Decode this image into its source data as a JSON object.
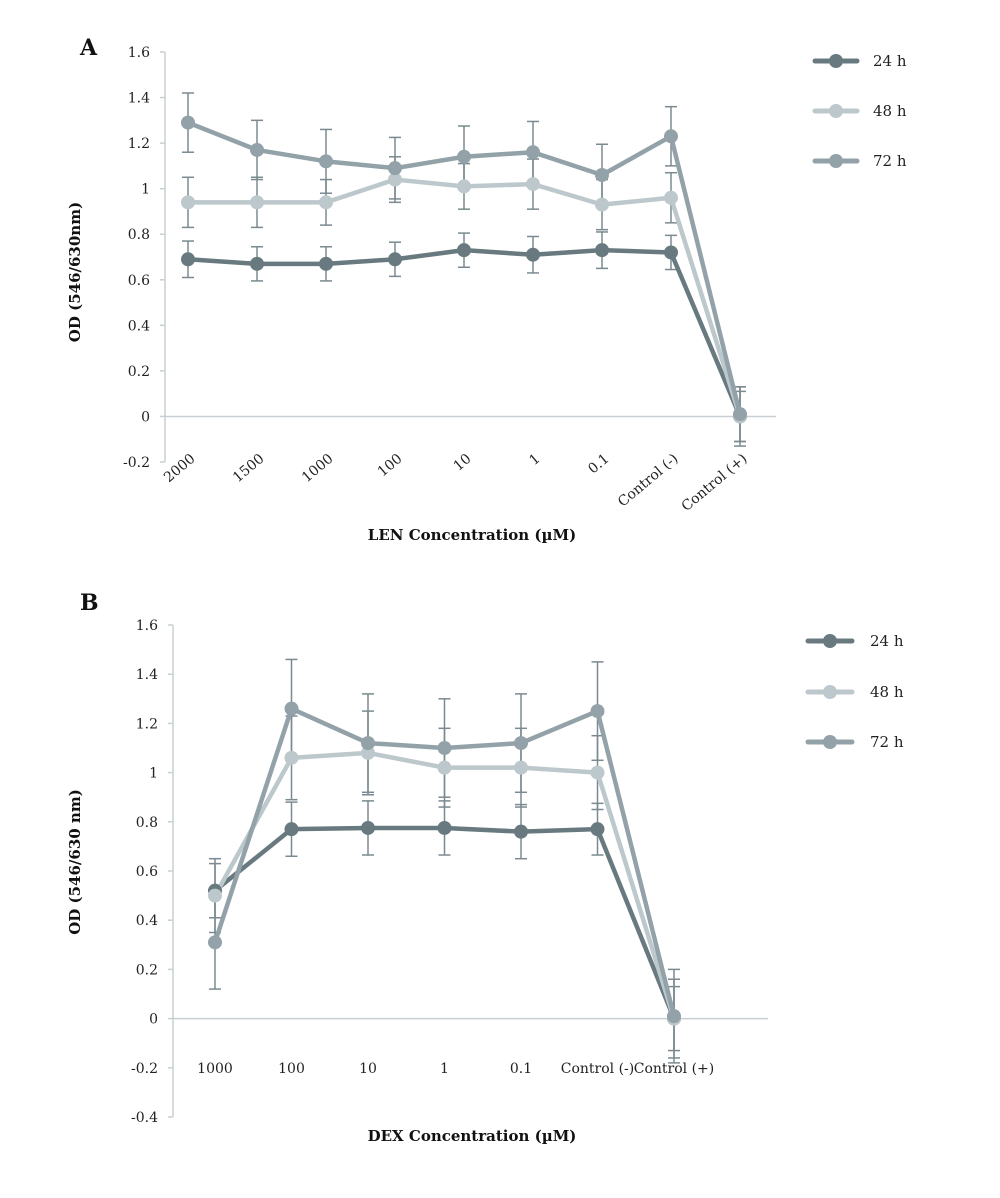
{
  "colors": {
    "24 h": "#687a80",
    "48 h": "#bcc8cc",
    "72 h": "#92a2a8",
    "axis": "#c8cfd2",
    "errorbar": "#7a8a90"
  },
  "chart_data": [
    {
      "type": "line",
      "panel_label": "A",
      "xlabel": "LEN Concentration (µM)",
      "ylabel": "OD (546/630nm)",
      "categories": [
        "2000",
        "1500",
        "1000",
        "100",
        "10",
        "1",
        "0.1",
        "Control (-)",
        "Control (+)"
      ],
      "ylim": [
        -0.2,
        1.6
      ],
      "yticks": [
        "-0.2",
        "0",
        "0.2",
        "0.4",
        "0.6",
        "0.8",
        "1",
        "1.2",
        "1.4",
        "1.6"
      ],
      "grid": false,
      "legend_position": "top-right",
      "tick_label_rotation": "rotated",
      "series": [
        {
          "name": "24 h",
          "values": [
            0.69,
            0.67,
            0.67,
            0.69,
            0.73,
            0.71,
            0.73,
            0.72,
            0.0
          ],
          "errors": [
            0.08,
            0.075,
            0.075,
            0.075,
            0.075,
            0.08,
            0.08,
            0.075,
            0.13
          ]
        },
        {
          "name": "48 h",
          "values": [
            0.94,
            0.94,
            0.94,
            1.04,
            1.01,
            1.02,
            0.93,
            0.96,
            0.0
          ],
          "errors": [
            0.11,
            0.11,
            0.1,
            0.1,
            0.1,
            0.11,
            0.11,
            0.11,
            0.11
          ]
        },
        {
          "name": "72 h",
          "values": [
            1.29,
            1.17,
            1.12,
            1.09,
            1.14,
            1.16,
            1.06,
            1.23,
            0.01
          ],
          "errors": [
            0.13,
            0.13,
            0.14,
            0.135,
            0.135,
            0.135,
            0.135,
            0.13,
            0.12
          ]
        }
      ]
    },
    {
      "type": "line",
      "panel_label": "B",
      "xlabel": "DEX Concentration (µM)",
      "ylabel": "OD (546/630 nm)",
      "categories": [
        "1000",
        "100",
        "10",
        "1",
        "0.1",
        "Control (-)",
        "Control (+)"
      ],
      "ylim": [
        -0.4,
        1.6
      ],
      "yticks": [
        "-0.4",
        "-0.2",
        "0",
        "0.2",
        "0.4",
        "0.6",
        "0.8",
        "1",
        "1.2",
        "1.4",
        "1.6"
      ],
      "grid": false,
      "legend_position": "top-right",
      "tick_label_rotation": "none",
      "series": [
        {
          "name": "24 h",
          "values": [
            0.52,
            0.77,
            0.775,
            0.775,
            0.76,
            0.77,
            0.0
          ],
          "errors": [
            0.11,
            0.11,
            0.11,
            0.11,
            0.11,
            0.105,
            0.13
          ]
        },
        {
          "name": "48 h",
          "values": [
            0.5,
            1.06,
            1.08,
            1.02,
            1.02,
            1.0,
            0.0
          ],
          "errors": [
            0.15,
            0.17,
            0.17,
            0.16,
            0.16,
            0.15,
            0.16
          ]
        },
        {
          "name": "72 h",
          "values": [
            0.31,
            1.26,
            1.12,
            1.1,
            1.12,
            1.25,
            0.01
          ],
          "errors": [
            0.19,
            0.2,
            0.2,
            0.2,
            0.2,
            0.2,
            0.19
          ]
        }
      ]
    }
  ]
}
